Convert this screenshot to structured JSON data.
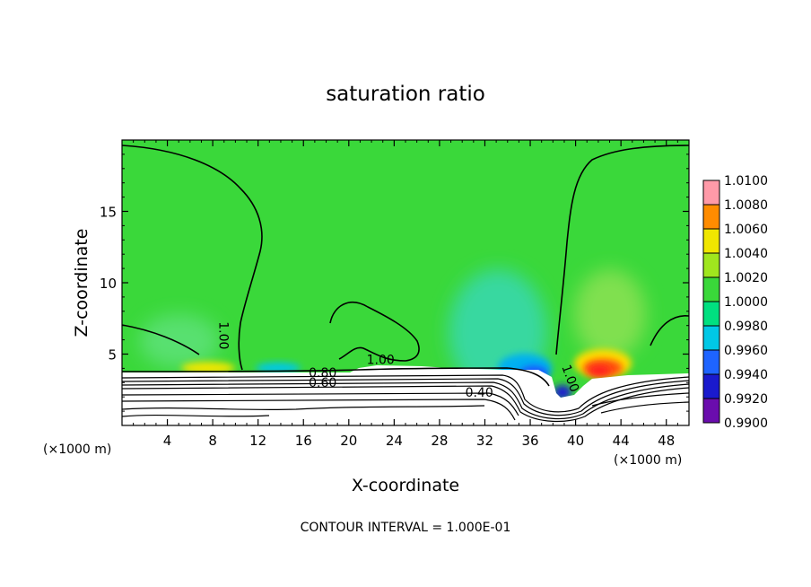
{
  "chart_data": {
    "type": "heatmap",
    "title": "saturation ratio",
    "xlabel": "X-coordinate",
    "ylabel": "Z-coordinate",
    "x_unit_label": "(×1000 m)",
    "y_unit_label": "(×1000 m)",
    "xlim": [
      0,
      50
    ],
    "ylim": [
      0,
      20
    ],
    "x_ticks": [
      4,
      8,
      12,
      16,
      20,
      24,
      28,
      32,
      36,
      40,
      44,
      48
    ],
    "y_ticks": [
      5,
      10,
      15
    ],
    "footer": "CONTOUR INTERVAL = 1.000E-01",
    "colorbar": {
      "levels": [
        "0.9900",
        "0.9920",
        "0.9940",
        "0.9960",
        "0.9980",
        "1.0000",
        "1.0020",
        "1.0040",
        "1.0060",
        "1.0080",
        "1.0100"
      ],
      "colors": [
        "#6a0dad",
        "#1a1acd",
        "#1e64ff",
        "#00c8e6",
        "#00e080",
        "#3ad83a",
        "#a0e61e",
        "#f0e600",
        "#ff8c00",
        "#ff2814"
      ],
      "top_color": "#ff9aa8"
    },
    "contour_labels": [
      {
        "text": "1.00",
        "x": 8.6,
        "z": 6.3,
        "angle": 90
      },
      {
        "text": "1.00",
        "x": 22.8,
        "z": 4.3,
        "angle": 0
      },
      {
        "text": "0.80",
        "x": 17.7,
        "z": 3.4,
        "angle": 0
      },
      {
        "text": "0.60",
        "x": 17.7,
        "z": 2.7,
        "angle": 0
      },
      {
        "text": "0.40",
        "x": 31.5,
        "z": 2.0,
        "angle": 0
      },
      {
        "text": "1.00",
        "x": 39.2,
        "z": 3.2,
        "angle": 70
      }
    ],
    "background_value": 1.0,
    "terrain_max_z": 3.7,
    "features": [
      {
        "kind": "dry",
        "x": 35.5,
        "z": 3.8,
        "value": 0.9935
      },
      {
        "kind": "moist",
        "x": 42.5,
        "z": 4.3,
        "value": 1.007
      },
      {
        "kind": "dry",
        "x": 34.0,
        "z": 6.5,
        "value": 0.998
      }
    ]
  }
}
